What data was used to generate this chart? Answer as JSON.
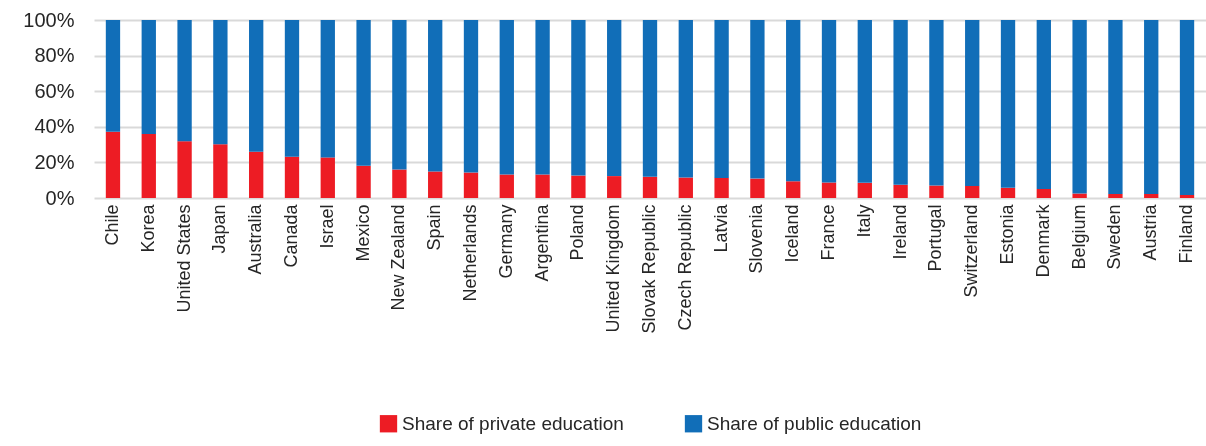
{
  "chart_data": {
    "type": "bar",
    "categories": [
      "Chile",
      "Korea",
      "United States",
      "Japan",
      "Australia",
      "Canada",
      "Israel",
      "Mexico",
      "New Zealand",
      "Spain",
      "Netherlands",
      "Germany",
      "Argentina",
      "Poland",
      "United Kingdom",
      "Slovak Republic",
      "Czech Republic",
      "Latvia",
      "Slovenia",
      "Iceland",
      "France",
      "Italy",
      "Ireland",
      "Portugal",
      "Switzerland",
      "Estonia",
      "Denmark",
      "Belgium",
      "Sweden",
      "Austria",
      "Finland"
    ],
    "series": [
      {
        "name": "Share of private education",
        "color": "#ed1c24",
        "values": [
          37.2,
          36.0,
          31.9,
          30.2,
          26.0,
          23.2,
          22.8,
          18.1,
          16.0,
          14.9,
          14.3,
          13.2,
          13.2,
          12.6,
          12.3,
          11.9,
          11.5,
          11.3,
          10.9,
          9.4,
          8.7,
          8.5,
          7.4,
          7.0,
          6.8,
          5.7,
          5.1,
          2.5,
          2.3,
          2.3,
          1.7
        ]
      },
      {
        "name": "Share of public education",
        "color": "#116eb8",
        "values": [
          62.8,
          64.0,
          68.1,
          69.8,
          74.0,
          76.8,
          77.2,
          81.9,
          84.0,
          85.1,
          85.7,
          86.8,
          86.8,
          87.4,
          87.7,
          88.1,
          88.5,
          88.7,
          89.1,
          90.6,
          91.3,
          91.5,
          92.6,
          93.0,
          93.2,
          94.3,
          94.9,
          97.5,
          97.7,
          97.7,
          98.3
        ]
      }
    ],
    "stacked": true,
    "ylim": [
      0,
      100
    ],
    "yticks": [
      {
        "value": 0,
        "label": "0%"
      },
      {
        "value": 20,
        "label": "20%"
      },
      {
        "value": 40,
        "label": "40%"
      },
      {
        "value": 60,
        "label": "60%"
      },
      {
        "value": 80,
        "label": "80%"
      },
      {
        "value": 100,
        "label": "100%"
      }
    ],
    "grid": "y",
    "legend": "bottom"
  }
}
